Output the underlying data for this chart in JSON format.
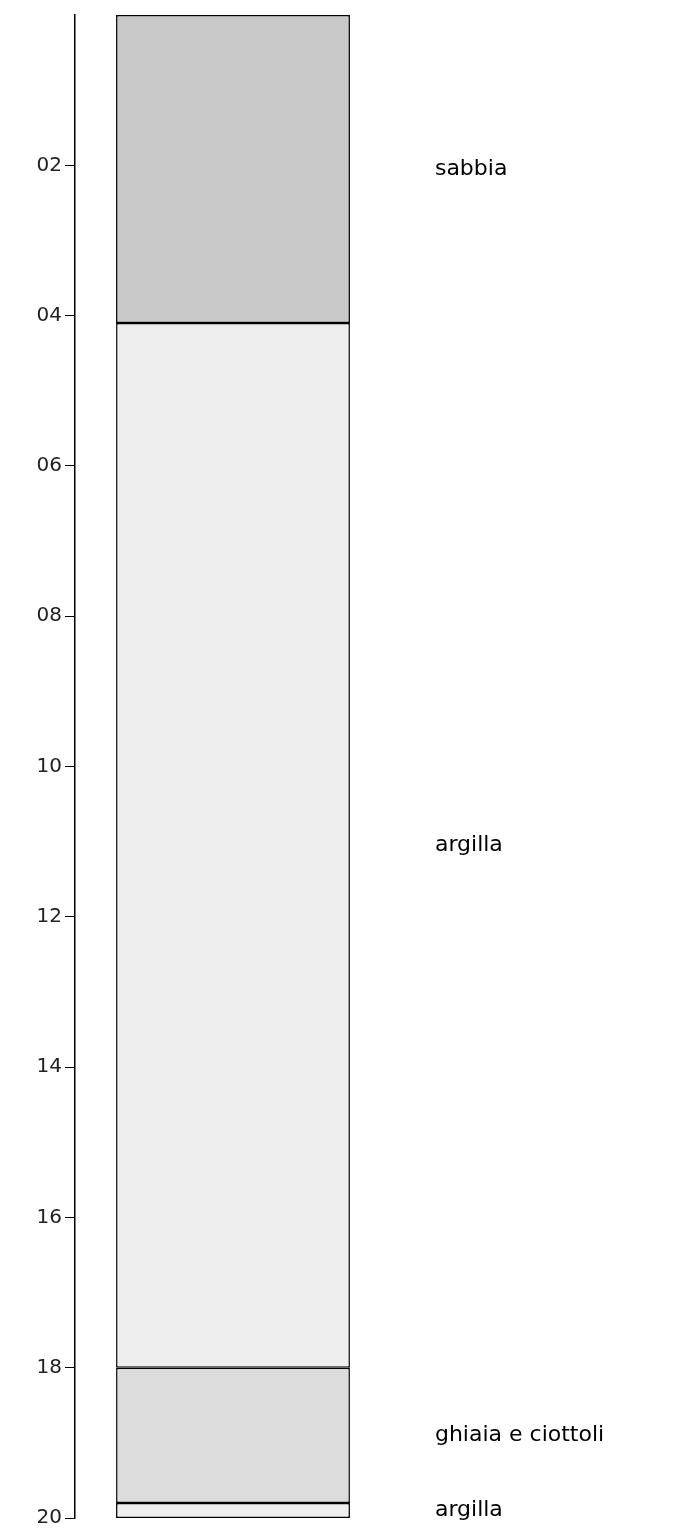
{
  "chart_data": {
    "type": "bar",
    "stacked": true,
    "categories": [
      null
    ],
    "series": [
      {
        "name": "sabbia",
        "color": "#c8c8c8",
        "values": [
          4.1
        ]
      },
      {
        "name": "argilla",
        "color": "#eeeeee",
        "values": [
          13.9
        ]
      },
      {
        "name": "ghiaia e ciottoli",
        "color": "#dcdcdc",
        "values": [
          1.8
        ]
      },
      {
        "name": "argilla",
        "color": "#eeeeee",
        "values": [
          0.2
        ]
      }
    ],
    "ylim": [
      20,
      0
    ],
    "yticks": [
      {
        "value": 2,
        "label": "02"
      },
      {
        "value": 4,
        "label": "04"
      },
      {
        "value": 6,
        "label": "06"
      },
      {
        "value": 8,
        "label": "08"
      },
      10,
      12,
      14,
      16,
      18,
      20
    ],
    "grid": false,
    "legend": false
  }
}
